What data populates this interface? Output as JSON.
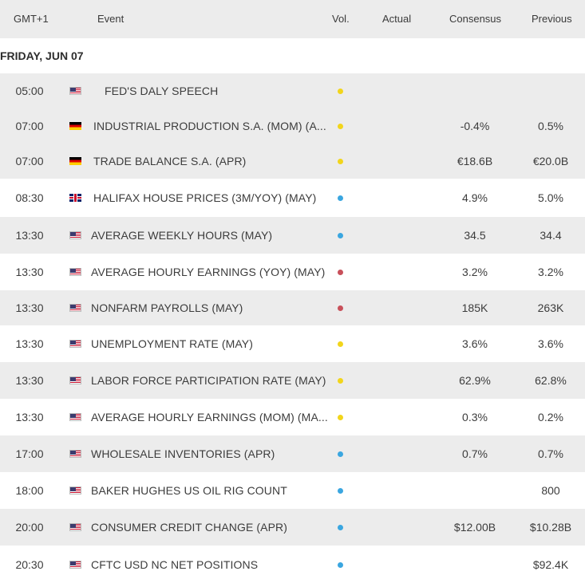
{
  "header": {
    "timezone": "GMT+1",
    "event": "Event",
    "vol": "Vol.",
    "actual": "Actual",
    "consensus": "Consensus",
    "previous": "Previous"
  },
  "date_label": "FRIDAY, JUN 07",
  "colors": {
    "yellow": "#f2d51b",
    "blue": "#3aa6e0",
    "red": "#c8505a",
    "row_shade": "#ececec"
  },
  "events": [
    {
      "time": "05:00",
      "country": "US",
      "flag": "us-flag-icon",
      "event": "FED'S DALY SPEECH",
      "vol": "yellow",
      "actual": "",
      "consensus": "",
      "previous": ""
    },
    {
      "time": "07:00",
      "country": "DE",
      "flag": "de-flag-icon",
      "event": "INDUSTRIAL PRODUCTION S.A. (MOM) (A...",
      "vol": "yellow",
      "actual": "",
      "consensus": "-0.4%",
      "previous": "0.5%"
    },
    {
      "time": "07:00",
      "country": "DE",
      "flag": "de-flag-icon",
      "event": "TRADE BALANCE S.A. (APR)",
      "vol": "yellow",
      "actual": "",
      "consensus": "€18.6B",
      "previous": "€20.0B"
    },
    {
      "time": "08:30",
      "country": "GB",
      "flag": "gb-flag-icon",
      "event": "HALIFAX HOUSE PRICES (3M/YOY) (MAY)",
      "vol": "blue",
      "actual": "",
      "consensus": "4.9%",
      "previous": "5.0%"
    },
    {
      "time": "13:30",
      "country": "US",
      "flag": "us-flag-icon",
      "event": "AVERAGE WEEKLY HOURS (MAY)",
      "vol": "blue",
      "actual": "",
      "consensus": "34.5",
      "previous": "34.4"
    },
    {
      "time": "13:30",
      "country": "US",
      "flag": "us-flag-icon",
      "event": "AVERAGE HOURLY EARNINGS (YOY) (MAY)",
      "vol": "red",
      "actual": "",
      "consensus": "3.2%",
      "previous": "3.2%"
    },
    {
      "time": "13:30",
      "country": "US",
      "flag": "us-flag-icon",
      "event": "NONFARM PAYROLLS (MAY)",
      "vol": "red",
      "actual": "",
      "consensus": "185K",
      "previous": "263K"
    },
    {
      "time": "13:30",
      "country": "US",
      "flag": "us-flag-icon",
      "event": "UNEMPLOYMENT RATE (MAY)",
      "vol": "yellow",
      "actual": "",
      "consensus": "3.6%",
      "previous": "3.6%"
    },
    {
      "time": "13:30",
      "country": "US",
      "flag": "us-flag-icon",
      "event": "LABOR FORCE PARTICIPATION RATE (MAY)",
      "vol": "yellow",
      "actual": "",
      "consensus": "62.9%",
      "previous": "62.8%"
    },
    {
      "time": "13:30",
      "country": "US",
      "flag": "us-flag-icon",
      "event": "AVERAGE HOURLY EARNINGS (MOM) (MA...",
      "vol": "yellow",
      "actual": "",
      "consensus": "0.3%",
      "previous": "0.2%"
    },
    {
      "time": "17:00",
      "country": "US",
      "flag": "us-flag-icon",
      "event": "WHOLESALE INVENTORIES (APR)",
      "vol": "blue",
      "actual": "",
      "consensus": "0.7%",
      "previous": "0.7%"
    },
    {
      "time": "18:00",
      "country": "US",
      "flag": "us-flag-icon",
      "event": "BAKER HUGHES US OIL RIG COUNT",
      "vol": "blue",
      "actual": "",
      "consensus": "",
      "previous": "800"
    },
    {
      "time": "20:00",
      "country": "US",
      "flag": "us-flag-icon",
      "event": "CONSUMER CREDIT CHANGE (APR)",
      "vol": "blue",
      "actual": "",
      "consensus": "$12.00B",
      "previous": "$10.28B"
    },
    {
      "time": "20:30",
      "country": "US",
      "flag": "us-flag-icon",
      "event": "CFTC USD NC NET POSITIONS",
      "vol": "blue",
      "actual": "",
      "consensus": "",
      "previous": "$92.4K"
    }
  ]
}
